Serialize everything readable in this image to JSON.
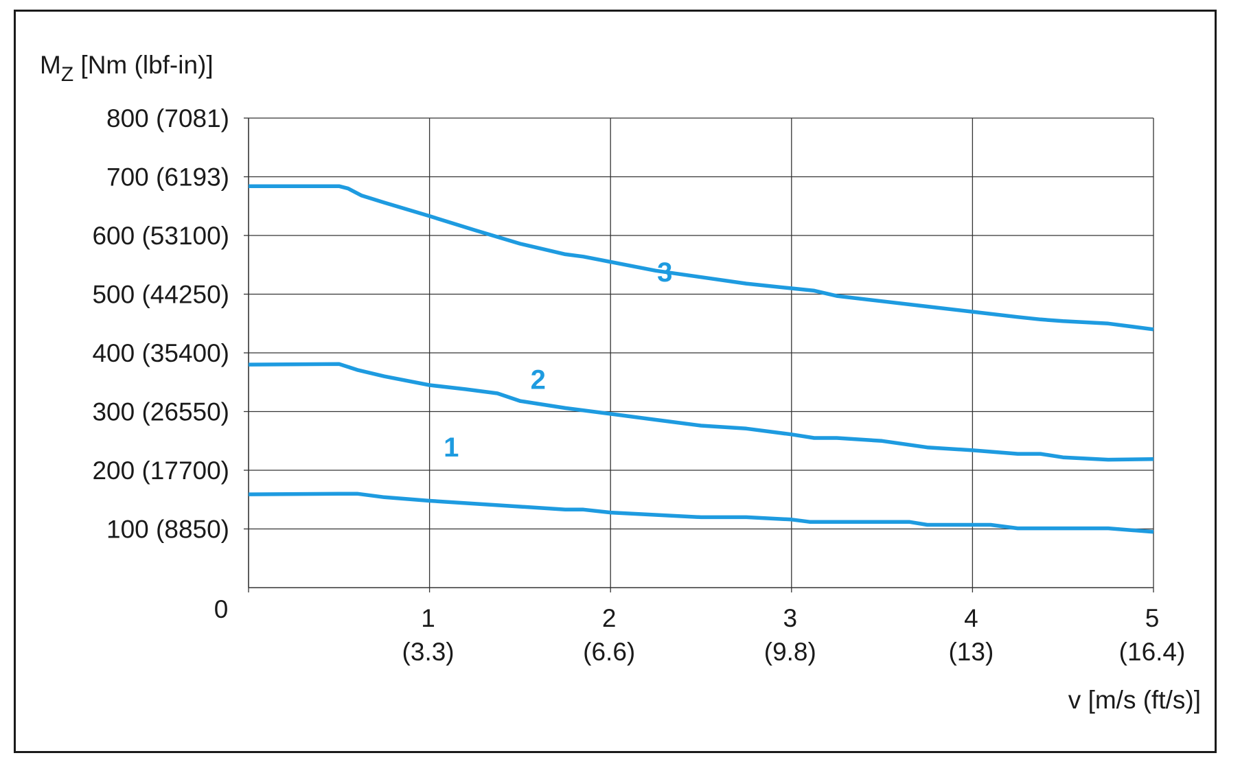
{
  "chart_data": {
    "type": "line",
    "ylabel_main": "M",
    "ylabel_sub": "Z",
    "ylabel_rest": " [Nm (lbf-in)]",
    "xlabel": "v [m/s (ft/s)]",
    "xlim": [
      0,
      5
    ],
    "ylim": [
      0,
      800
    ],
    "grid": true,
    "origin_label": "0",
    "y_ticks": [
      {
        "value": 100,
        "label": "100 (8850)"
      },
      {
        "value": 200,
        "label": "200 (17700)"
      },
      {
        "value": 300,
        "label": "300 (26550)"
      },
      {
        "value": 400,
        "label": "400 (35400)"
      },
      {
        "value": 500,
        "label": "500 (44250)"
      },
      {
        "value": 600,
        "label": "600 (53100)"
      },
      {
        "value": 700,
        "label": "700 (6193)"
      },
      {
        "value": 800,
        "label": "800 (7081)"
      }
    ],
    "x_ticks": [
      {
        "value": 1,
        "label": "1",
        "sublabel": "(3.3)"
      },
      {
        "value": 2,
        "label": "2",
        "sublabel": "(6.6)"
      },
      {
        "value": 3,
        "label": "3",
        "sublabel": "(9.8)"
      },
      {
        "value": 4,
        "label": "4",
        "sublabel": "(13)"
      },
      {
        "value": 5,
        "label": "5",
        "sublabel": "(16.4)"
      }
    ],
    "line_color": "#1e9be0",
    "series": [
      {
        "label": "1",
        "label_pos": [
          1.12,
          240
        ],
        "points": [
          [
            0,
            159
          ],
          [
            0.5,
            160
          ],
          [
            0.6,
            160
          ],
          [
            0.75,
            154
          ],
          [
            1,
            148
          ],
          [
            1.5,
            138
          ],
          [
            1.75,
            133
          ],
          [
            1.85,
            133
          ],
          [
            2,
            128
          ],
          [
            2.5,
            120
          ],
          [
            2.75,
            120
          ],
          [
            3,
            116
          ],
          [
            3.1,
            112
          ],
          [
            3.5,
            112
          ],
          [
            3.65,
            112
          ],
          [
            3.75,
            107
          ],
          [
            4.1,
            107
          ],
          [
            4.25,
            101
          ],
          [
            4.75,
            101
          ],
          [
            5,
            95
          ]
        ]
      },
      {
        "label": "2",
        "label_pos": [
          1.6,
          355
        ],
        "points": [
          [
            0,
            380
          ],
          [
            0.5,
            381
          ],
          [
            0.6,
            371
          ],
          [
            0.75,
            360
          ],
          [
            1,
            345
          ],
          [
            1.2,
            338
          ],
          [
            1.375,
            331
          ],
          [
            1.5,
            318
          ],
          [
            1.75,
            306
          ],
          [
            2,
            296
          ],
          [
            2.25,
            286
          ],
          [
            2.5,
            276
          ],
          [
            2.75,
            271
          ],
          [
            3,
            261
          ],
          [
            3.125,
            255
          ],
          [
            3.25,
            255
          ],
          [
            3.5,
            250
          ],
          [
            3.75,
            239
          ],
          [
            4,
            234
          ],
          [
            4.25,
            228
          ],
          [
            4.375,
            228
          ],
          [
            4.5,
            222
          ],
          [
            4.75,
            218
          ],
          [
            5,
            219
          ]
        ]
      },
      {
        "label": "3",
        "label_pos": [
          2.3,
          538
        ],
        "points": [
          [
            0,
            684
          ],
          [
            0.5,
            684
          ],
          [
            0.55,
            680
          ],
          [
            0.625,
            668
          ],
          [
            0.75,
            656
          ],
          [
            1,
            633
          ],
          [
            1.25,
            609
          ],
          [
            1.5,
            586
          ],
          [
            1.75,
            568
          ],
          [
            1.85,
            564
          ],
          [
            2,
            555
          ],
          [
            2.25,
            540
          ],
          [
            2.5,
            529
          ],
          [
            2.75,
            518
          ],
          [
            3,
            510
          ],
          [
            3.125,
            506
          ],
          [
            3.25,
            497
          ],
          [
            3.5,
            488
          ],
          [
            3.75,
            479
          ],
          [
            4,
            470
          ],
          [
            4.25,
            461
          ],
          [
            4.375,
            457
          ],
          [
            4.5,
            454
          ],
          [
            4.75,
            450
          ],
          [
            5,
            440
          ]
        ]
      }
    ]
  }
}
